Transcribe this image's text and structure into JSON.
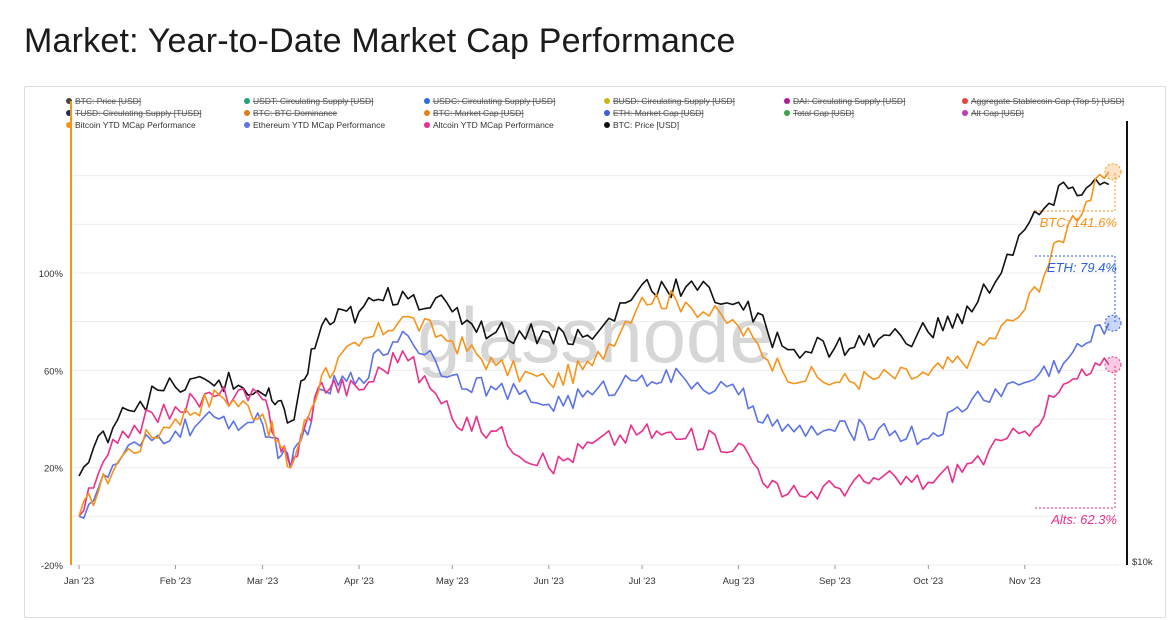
{
  "title": "Market: Year-to-Date Market Cap Performance",
  "colors": {
    "btc_price": "#111111",
    "bitcoin": "#f7931a",
    "ethereum": "#5b73e8",
    "altcoin": "#e8308c",
    "grid": "#ececec"
  },
  "legend": [
    {
      "label": "BTC: Price [USD]",
      "color": "#444444",
      "disabled": true
    },
    {
      "label": "USDT: Circulating Supply [USD]",
      "color": "#1aa37a",
      "disabled": true
    },
    {
      "label": "USDC: Circulating Supply [USD]",
      "color": "#2a6fdb",
      "disabled": true
    },
    {
      "label": "BUSD: Circulating Supply [USD]",
      "color": "#c9b51a",
      "disabled": true
    },
    {
      "label": "DAI: Circulating Supply [USD]",
      "color": "#b31a9a",
      "disabled": true
    },
    {
      "label": "Aggregate Stablecoin Cap (Top 5) [USD]",
      "color": "#e8403a",
      "disabled": true
    },
    {
      "label": "TUSD: Circulating Supply [TUSD]",
      "color": "#1e2a5e",
      "disabled": true
    },
    {
      "label": "BTC: BTC Dominance",
      "color": "#e07a1a",
      "disabled": true
    },
    {
      "label": "BTC: Market Cap [USD]",
      "color": "#e8801a",
      "disabled": true
    },
    {
      "label": "ETH: Market Cap [USD]",
      "color": "#3a5fd8",
      "disabled": true
    },
    {
      "label": "Total Cap [USD]",
      "color": "#3aa34a",
      "disabled": true
    },
    {
      "label": "Alt Cap [USD]",
      "color": "#c03ab0",
      "disabled": true
    },
    {
      "label": "Bitcoin YTD MCap Performance",
      "color": "#f7931a",
      "disabled": false
    },
    {
      "label": "Ethereum YTD MCap Performance",
      "color": "#5b73e8",
      "disabled": false
    },
    {
      "label": "Altcoin YTD MCap Performance",
      "color": "#e8308c",
      "disabled": false
    },
    {
      "label": "BTC: Price [USD]",
      "color": "#111111",
      "disabled": false
    }
  ],
  "watermark": "glassnode",
  "y_ticks": [
    "100%",
    "60%",
    "20%",
    "-20%"
  ],
  "x_ticks": [
    "Jan '23",
    "Feb '23",
    "Mar '23",
    "Apr '23",
    "May '23",
    "Jun '23",
    "Jul '23",
    "Aug '23",
    "Sep '23",
    "Oct '23",
    "Nov '23"
  ],
  "right_axis_tick": "$10k",
  "end_labels": {
    "btc": "BTC: 141.6%",
    "eth": "ETH: 79.4%",
    "alts": "Alts: 62.3%"
  },
  "chart_data": {
    "type": "line",
    "title": "Market: Year-to-Date Market Cap Performance",
    "x_axis": "date",
    "x": [
      "2023-01-01",
      "2023-01-15",
      "2023-02-01",
      "2023-02-15",
      "2023-03-01",
      "2023-03-10",
      "2023-03-20",
      "2023-04-01",
      "2023-04-15",
      "2023-05-01",
      "2023-05-15",
      "2023-06-01",
      "2023-06-15",
      "2023-07-01",
      "2023-07-15",
      "2023-08-01",
      "2023-08-15",
      "2023-09-01",
      "2023-09-15",
      "2023-10-01",
      "2023-10-15",
      "2023-11-01",
      "2023-11-15",
      "2023-11-28"
    ],
    "y_left_range": [
      -20,
      160
    ],
    "y_right_label": "$10k",
    "series": [
      {
        "name": "Bitcoin YTD MCap Performance",
        "axis": "left",
        "color": "#f7931a",
        "values": [
          0,
          25,
          40,
          50,
          42,
          20,
          58,
          70,
          82,
          72,
          62,
          55,
          62,
          90,
          88,
          78,
          60,
          55,
          57,
          58,
          66,
          85,
          120,
          141.6
        ]
      },
      {
        "name": "Ethereum YTD MCap Performance",
        "axis": "left",
        "color": "#5b73e8",
        "values": [
          0,
          25,
          35,
          40,
          38,
          20,
          52,
          57,
          76,
          58,
          52,
          46,
          50,
          58,
          56,
          50,
          35,
          35,
          36,
          32,
          48,
          55,
          65,
          79.4
        ]
      },
      {
        "name": "Altcoin YTD MCap Performance",
        "axis": "left",
        "color": "#e8308c",
        "values": [
          0,
          35,
          45,
          50,
          48,
          20,
          55,
          52,
          68,
          40,
          35,
          20,
          30,
          35,
          32,
          30,
          8,
          12,
          15,
          14,
          22,
          35,
          55,
          62.3
        ]
      },
      {
        "name": "BTC: Price [USD]",
        "axis": "right",
        "color": "#111111",
        "values": [
          16500,
          21500,
          23000,
          23500,
          22500,
          20500,
          27500,
          28500,
          30000,
          28500,
          27000,
          27000,
          26500,
          30500,
          30300,
          29200,
          26000,
          25900,
          26500,
          27000,
          28500,
          34500,
          37500,
          37800
        ]
      }
    ],
    "grid": true,
    "legend_position": "top"
  }
}
